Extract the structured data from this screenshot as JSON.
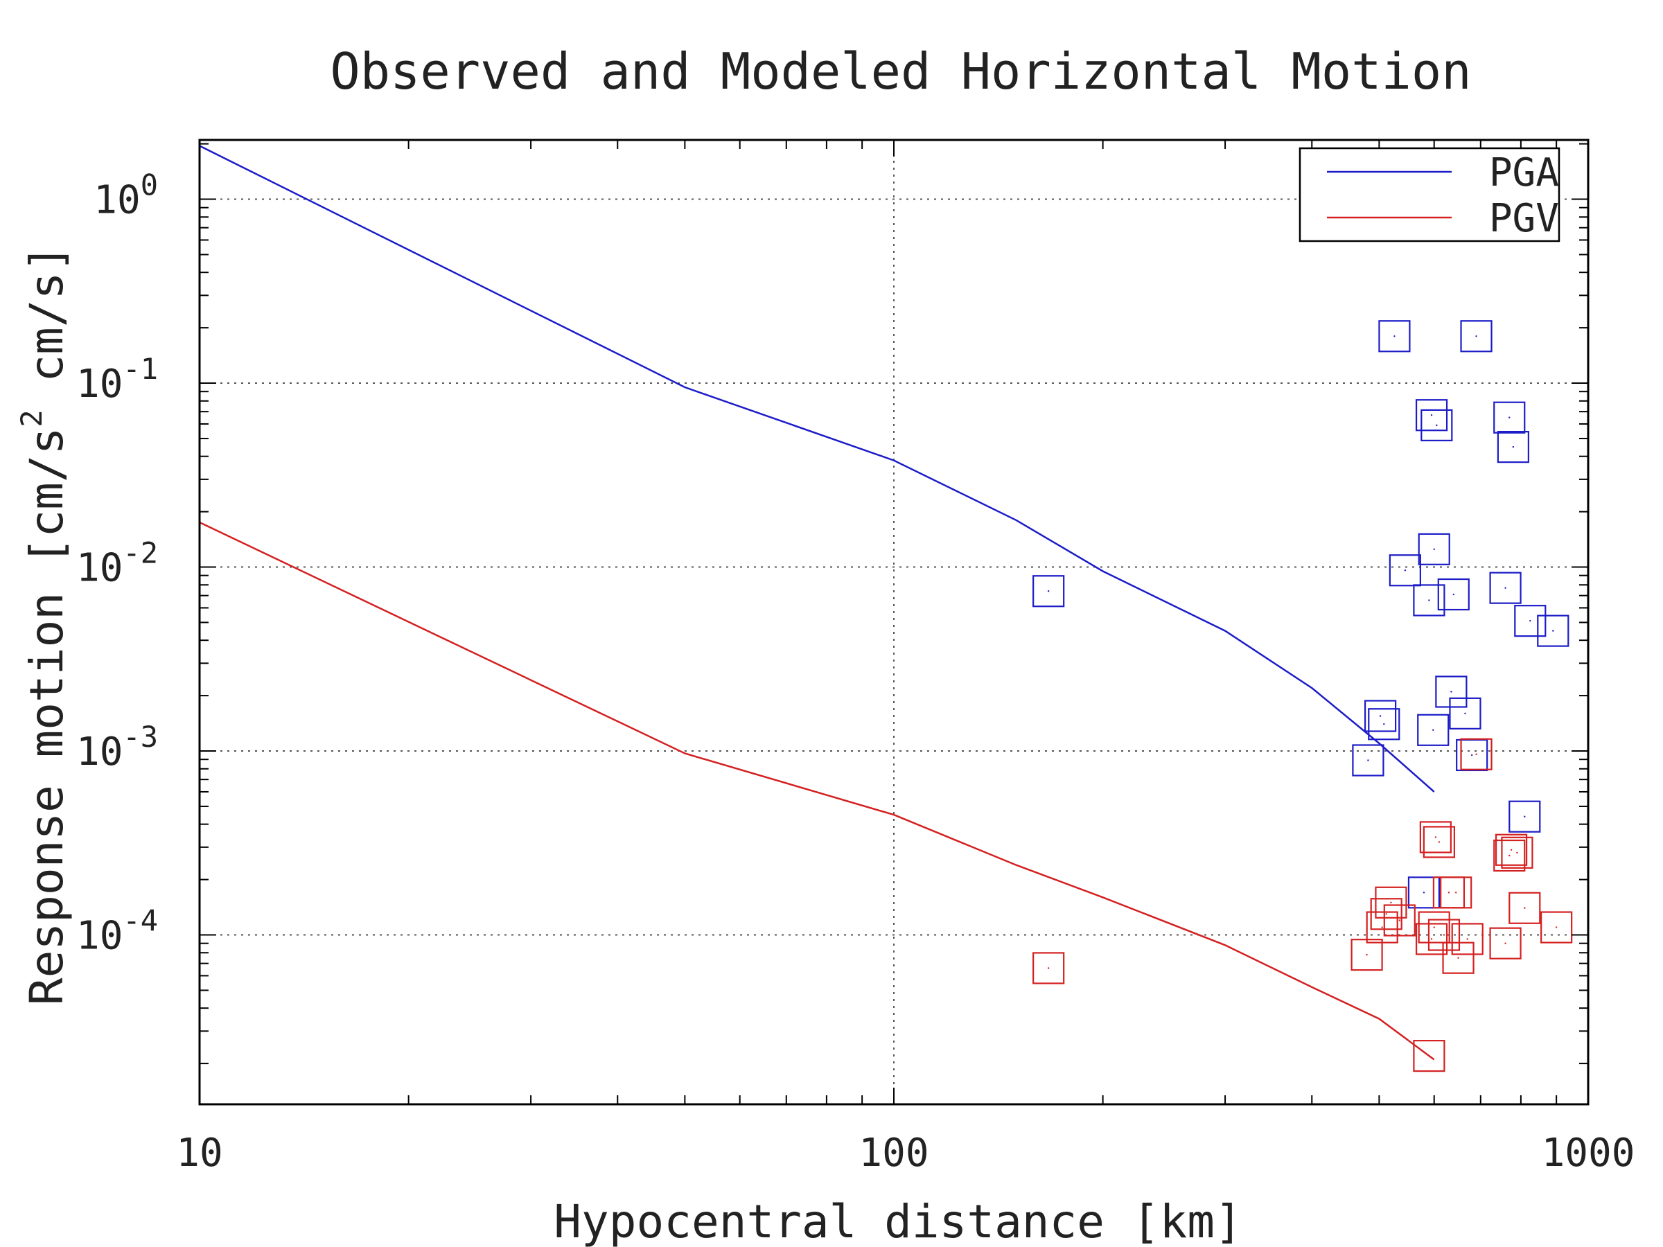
{
  "chart_data": {
    "type": "scatter",
    "title": "Observed and Modeled Horizontal Motion",
    "xlabel": "Hypocentral distance [km]",
    "ylabel_parts": [
      "Response motion [cm/s",
      "2",
      " cm/s]"
    ],
    "x_scale": "log",
    "y_scale": "log",
    "xlim": [
      10,
      1000
    ],
    "ylim": [
      1.2e-05,
      2.1
    ],
    "x_ticks": [
      {
        "value": 10,
        "label": "10"
      },
      {
        "value": 100,
        "label": "100"
      },
      {
        "value": 1000,
        "label": "1000"
      }
    ],
    "y_ticks": [
      {
        "value": 1,
        "base": "10",
        "exp": "0"
      },
      {
        "value": 0.1,
        "base": "10",
        "exp": "-1"
      },
      {
        "value": 0.01,
        "base": "10",
        "exp": "-2"
      },
      {
        "value": 0.001,
        "base": "10",
        "exp": "-3"
      },
      {
        "value": 0.0001,
        "base": "10",
        "exp": "-4"
      }
    ],
    "grid": true,
    "legend": {
      "position": "top-right",
      "entries": [
        {
          "label": "PGA",
          "color": "#1c1cc8"
        },
        {
          "label": "PGV",
          "color": "#d42020"
        }
      ]
    },
    "series": [
      {
        "name": "PGA",
        "kind": "model-line",
        "color": "#1c1cc8",
        "points": [
          [
            10,
            1.95
          ],
          [
            50,
            0.095
          ],
          [
            100,
            0.038
          ],
          [
            150,
            0.018
          ],
          [
            200,
            0.0095
          ],
          [
            300,
            0.0045
          ],
          [
            400,
            0.0022
          ],
          [
            500,
            0.0011
          ],
          [
            600,
            0.0006
          ]
        ]
      },
      {
        "name": "PGV",
        "kind": "model-line",
        "color": "#d42020",
        "points": [
          [
            10,
            0.0175
          ],
          [
            50,
            0.00097
          ],
          [
            100,
            0.00045
          ],
          [
            150,
            0.00024
          ],
          [
            200,
            0.00016
          ],
          [
            300,
            8.8e-05
          ],
          [
            400,
            5.2e-05
          ],
          [
            500,
            3.5e-05
          ],
          [
            600,
            2.1e-05
          ]
        ]
      },
      {
        "name": "PGA",
        "kind": "observed",
        "color": "#1c1cc8",
        "marker": "square",
        "points": [
          [
            167,
            0.0074
          ],
          [
            526,
            0.18
          ],
          [
            690,
            0.18
          ],
          [
            595,
            0.067
          ],
          [
            605,
            0.059
          ],
          [
            770,
            0.065
          ],
          [
            780,
            0.045
          ],
          [
            600,
            0.0125
          ],
          [
            545,
            0.0096
          ],
          [
            590,
            0.0066
          ],
          [
            640,
            0.0071
          ],
          [
            760,
            0.0077
          ],
          [
            825,
            0.0051
          ],
          [
            890,
            0.0045
          ],
          [
            635,
            0.0021
          ],
          [
            665,
            0.0016
          ],
          [
            502,
            0.00155
          ],
          [
            508,
            0.0014
          ],
          [
            598,
            0.0013
          ],
          [
            680,
            0.00095
          ],
          [
            482,
            0.00089
          ],
          [
            810,
            0.00044
          ],
          [
            580,
            0.00017
          ]
        ]
      },
      {
        "name": "PGV",
        "kind": "observed",
        "color": "#d42020",
        "marker": "square",
        "points": [
          [
            167,
            6.6e-05
          ],
          [
            520,
            0.00015
          ],
          [
            603,
            0.00034
          ],
          [
            610,
            0.00032
          ],
          [
            690,
            0.00096
          ],
          [
            775,
            0.00029
          ],
          [
            770,
            0.00027
          ],
          [
            790,
            0.00028
          ],
          [
            630,
            0.00017
          ],
          [
            645,
            0.00017
          ],
          [
            810,
            0.00014
          ],
          [
            512,
            0.00013
          ],
          [
            505,
            0.00011
          ],
          [
            535,
            0.00012
          ],
          [
            600,
            0.00011
          ],
          [
            595,
            9.5e-05
          ],
          [
            620,
            0.0001
          ],
          [
            670,
            9.5e-05
          ],
          [
            760,
            9e-05
          ],
          [
            900,
            0.00011
          ],
          [
            480,
            7.8e-05
          ],
          [
            650,
            7.5e-05
          ],
          [
            590,
            2.2e-05
          ]
        ]
      }
    ]
  }
}
